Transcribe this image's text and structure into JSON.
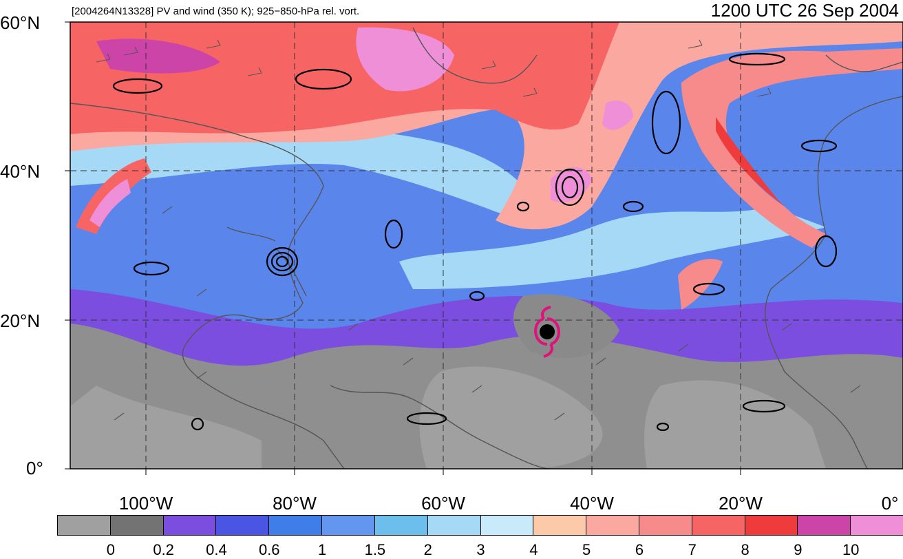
{
  "header": {
    "subtitle": "[2004264N13328] PV and wind (350 K); 925−850-hPa rel. vort.",
    "time": "1200 UTC 26 Sep 2004"
  },
  "axes": {
    "lat_labels": [
      "60°N",
      "40°N",
      "20°N",
      "0°"
    ],
    "lon_labels": [
      "100°W",
      "80°W",
      "60°W",
      "40°W",
      "20°W",
      "0°"
    ]
  },
  "colorbar": {
    "colors": [
      "#a0a0a0",
      "#737373",
      "#7b4ee0",
      "#4a56e3",
      "#3f7ee8",
      "#6397ef",
      "#6cbfec",
      "#a6d9f5",
      "#c9eafb",
      "#fccaa8",
      "#fba8a0",
      "#f78a8a",
      "#f76464",
      "#ef3b3b",
      "#cc44a8",
      "#ee8fd8"
    ],
    "labels": [
      "0",
      "0.2",
      "0.4",
      "0.6",
      "1",
      "1.5",
      "2",
      "3",
      "4",
      "5",
      "6",
      "7",
      "8",
      "9",
      "10"
    ]
  },
  "colors": {
    "storm_marker": "#e0117a",
    "grid": "#333333",
    "coast": "#555555"
  }
}
